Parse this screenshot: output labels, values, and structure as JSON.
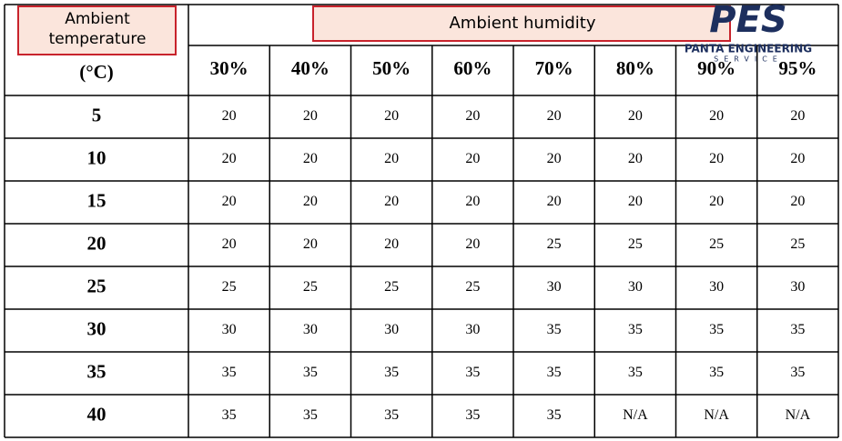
{
  "logo": {
    "mark": "PES",
    "name": "PANTA ENGINEERING",
    "tagline": "SERVICE"
  },
  "table": {
    "row_header_label": "Ambient temperature",
    "row_header_unit": "(°C)",
    "column_group_label": "Ambient humidity",
    "columns": [
      "30%",
      "40%",
      "50%",
      "60%",
      "70%",
      "80%",
      "90%",
      "95%"
    ],
    "rows": [
      [
        5,
        20,
        20,
        20,
        20,
        20,
        20,
        20,
        20
      ],
      [
        10,
        20,
        20,
        20,
        20,
        20,
        20,
        20,
        20
      ],
      [
        15,
        20,
        20,
        20,
        20,
        20,
        20,
        20,
        20
      ],
      [
        20,
        20,
        20,
        20,
        20,
        25,
        25,
        25,
        25
      ],
      [
        25,
        25,
        25,
        25,
        25,
        30,
        30,
        30,
        30
      ],
      [
        30,
        30,
        30,
        30,
        30,
        35,
        35,
        35,
        35
      ],
      [
        35,
        35,
        35,
        35,
        35,
        35,
        35,
        35,
        35
      ],
      [
        40,
        35,
        35,
        35,
        35,
        35,
        "N/A",
        "N/A",
        "N/A"
      ]
    ]
  }
}
